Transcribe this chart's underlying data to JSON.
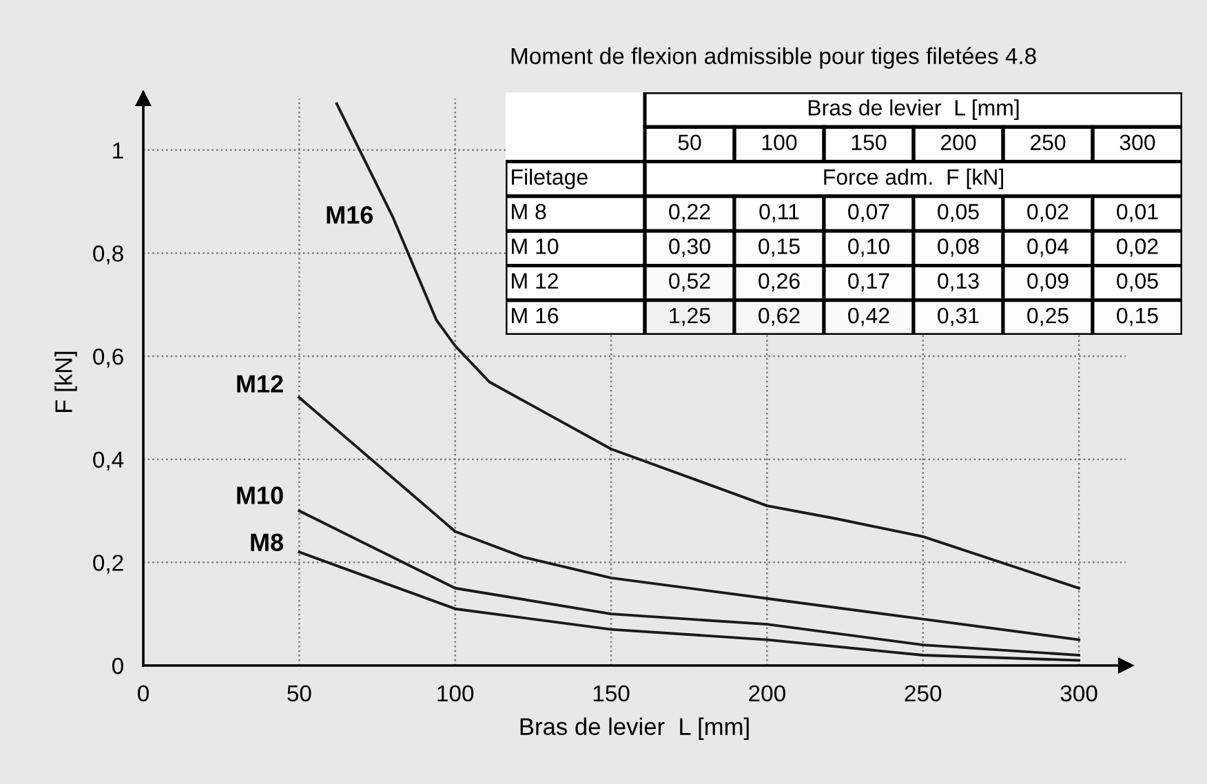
{
  "chart_data": [
    {
      "type": "line",
      "xlabel": "Bras de levier  L [mm]",
      "ylabel": "F [kN]",
      "xlim": [
        0,
        315
      ],
      "ylim": [
        0,
        1.1
      ],
      "xticks": [
        0,
        50,
        100,
        150,
        200,
        250,
        300
      ],
      "yticks": [
        0,
        {
          "value": 0.2,
          "label": "0,2"
        },
        {
          "value": 0.4,
          "label": "0,4"
        },
        {
          "value": 0.6,
          "label": "0,6"
        },
        {
          "value": 0.8,
          "label": "0,8"
        },
        1
      ],
      "grid": true,
      "legend": false,
      "series": [
        {
          "name": "M8",
          "color": "#1a1a1a",
          "x": [
            50,
            100,
            150,
            200,
            250,
            300
          ],
          "values": [
            0.22,
            0.11,
            0.07,
            0.05,
            0.02,
            0.01
          ]
        },
        {
          "name": "M10",
          "color": "#1a1a1a",
          "x": [
            50,
            100,
            150,
            200,
            250,
            300
          ],
          "values": [
            0.3,
            0.15,
            0.1,
            0.08,
            0.04,
            0.02
          ]
        },
        {
          "name": "M12",
          "color": "#1a1a1a",
          "x": [
            50,
            100,
            122,
            150,
            200,
            250,
            300
          ],
          "values": [
            0.52,
            0.26,
            0.21,
            0.17,
            0.13,
            0.09,
            0.05
          ]
        },
        {
          "name": "M16",
          "color": "#1a1a1a",
          "x": [
            62,
            80,
            94,
            100,
            111,
            150,
            200,
            222,
            250,
            300
          ],
          "values": [
            1.09,
            0.87,
            0.67,
            0.62,
            0.55,
            0.42,
            0.31,
            0.285,
            0.25,
            0.15
          ]
        }
      ]
    },
    {
      "type": "heatmap",
      "title": "Moment de flexion admissible pour tiges filetées 4.8",
      "xlabel": "Bras de levier  L [mm]",
      "annotations": [
        "Filetage",
        "Force adm.  F [kN]"
      ],
      "categories": [
        "50",
        "100",
        "150",
        "200",
        "250",
        "300"
      ],
      "y_categories": [
        "M 8",
        "M 10",
        "M 12",
        "M 16"
      ],
      "cells": [
        [
          0.22,
          0.11,
          0.07,
          0.05,
          0.02,
          0.01
        ],
        [
          0.3,
          0.15,
          0.1,
          0.08,
          0.04,
          0.02
        ],
        [
          0.52,
          0.26,
          0.17,
          0.13,
          0.09,
          0.05
        ],
        [
          1.25,
          0.62,
          0.42,
          0.31,
          0.25,
          0.15
        ]
      ],
      "cell_labels": [
        [
          "0,22",
          "0,11",
          "0,07",
          "0,05",
          "0,02",
          "0,01"
        ],
        [
          "0,30",
          "0,15",
          "0,10",
          "0,08",
          "0,04",
          "0,02"
        ],
        [
          "0,52",
          "0,26",
          "0,17",
          "0,13",
          "0,09",
          "0,05"
        ],
        [
          "1,25",
          "0,62",
          "0,42",
          "0,31",
          "0,25",
          "0,15"
        ]
      ]
    }
  ]
}
